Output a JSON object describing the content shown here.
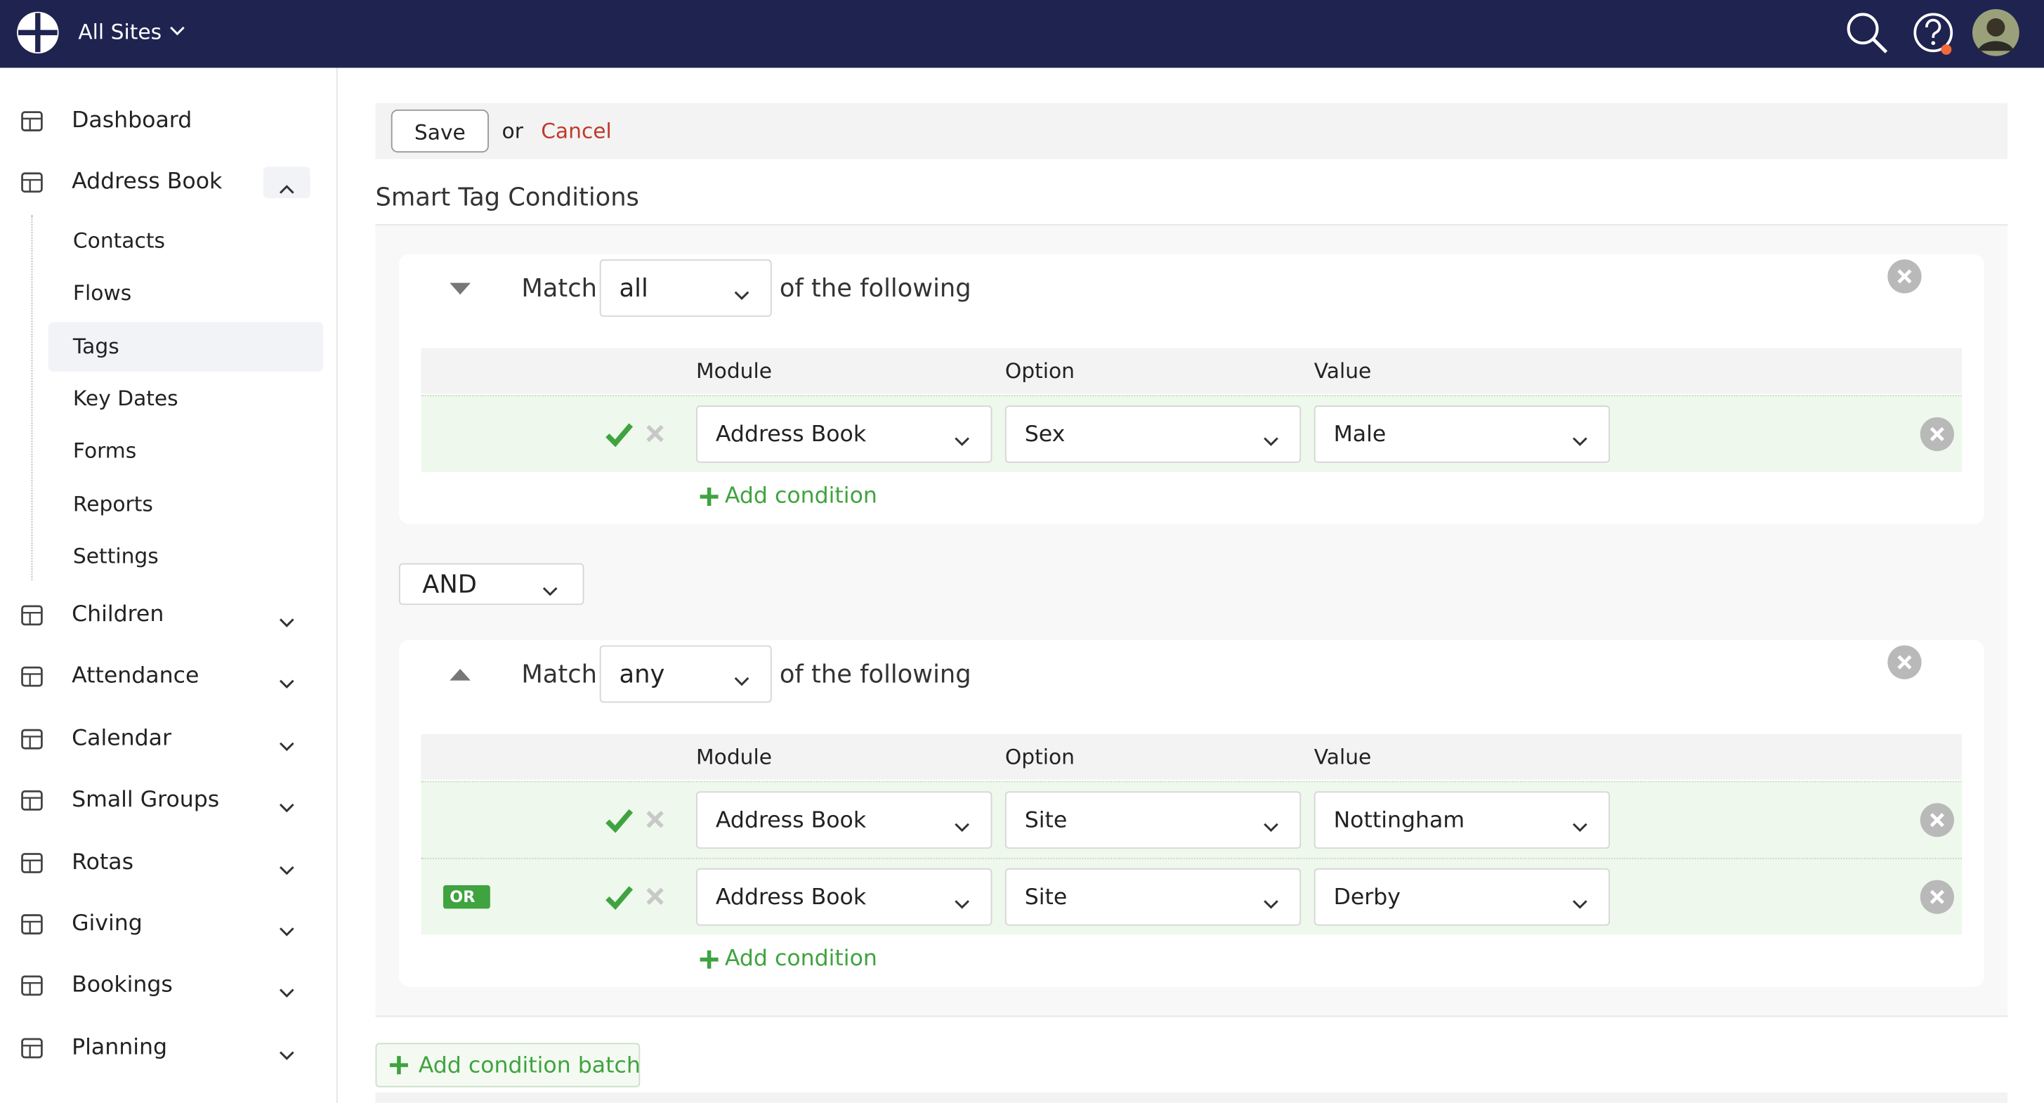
{
  "topbar": {
    "site_selector": "All Sites"
  },
  "sidebar": {
    "items": [
      "Dashboard",
      "Address Book",
      "Children",
      "Attendance",
      "Calendar",
      "Small Groups",
      "Rotas",
      "Giving",
      "Bookings",
      "Planning"
    ],
    "address_book_subitems": [
      "Contacts",
      "Flows",
      "Tags",
      "Key Dates",
      "Forms",
      "Reports",
      "Settings"
    ]
  },
  "toolbar": {
    "save": "Save",
    "or": "or",
    "cancel": "Cancel"
  },
  "section_title": "Smart Tag Conditions",
  "batches": [
    {
      "match_label": "Match",
      "match": "all",
      "suffix": "of the following",
      "headers": [
        "Module",
        "Option",
        "Value"
      ],
      "conditions": [
        {
          "module": "Address Book",
          "option": "Sex",
          "value": "Male"
        }
      ],
      "add_condition": "Add condition"
    },
    {
      "match_label": "Match",
      "match": "any",
      "suffix": "of the following",
      "headers": [
        "Module",
        "Option",
        "Value"
      ],
      "conditions": [
        {
          "module": "Address Book",
          "option": "Site",
          "value": "Nottingham"
        },
        {
          "connector": "OR",
          "module": "Address Book",
          "option": "Site",
          "value": "Derby"
        }
      ],
      "add_condition": "Add condition"
    }
  ],
  "batch_operator": "AND",
  "add_batch": "Add condition batch"
}
